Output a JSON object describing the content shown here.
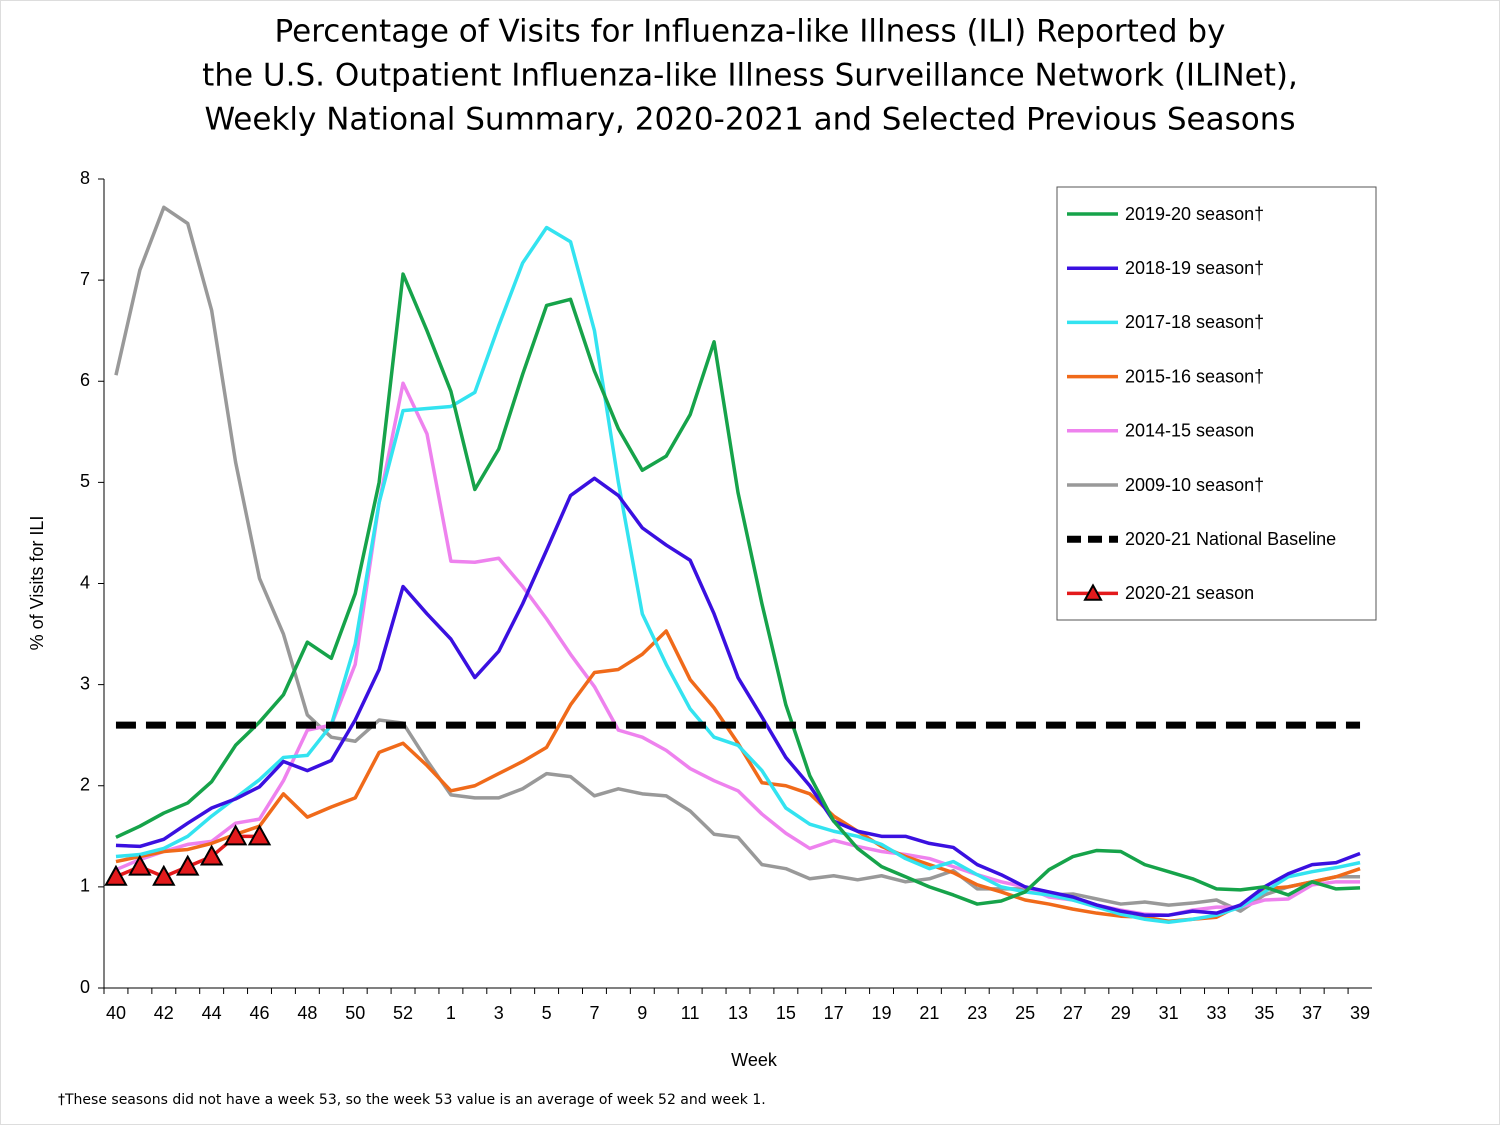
{
  "chart_data": {
    "type": "line",
    "title": [
      "Percentage of Visits for Influenza-like Illness (ILI) Reported by",
      "the U.S. Outpatient Influenza-like Illness Surveillance Network (ILINet),",
      "Weekly National Summary, 2020-2021 and Selected Previous Seasons"
    ],
    "x_label": "Week",
    "y_label": "% of Visits for ILI",
    "footnote": "†These seasons did not have a week 53, so the week 53 value is an average of week 52 and week 1.",
    "categories": [
      "40",
      null,
      "42",
      null,
      "44",
      null,
      "46",
      null,
      "48",
      null,
      "50",
      null,
      "52",
      null,
      "1",
      null,
      "3",
      null,
      "5",
      null,
      "7",
      null,
      "9",
      null,
      "11",
      null,
      "13",
      null,
      "15",
      null,
      "17",
      null,
      "19",
      null,
      "21",
      null,
      "23",
      null,
      "25",
      null,
      "27",
      null,
      "29",
      null,
      "31",
      null,
      "33",
      null,
      "35",
      null,
      "37",
      null,
      "39"
    ],
    "ylim": [
      0,
      8
    ],
    "yticks": [
      0,
      1,
      2,
      3,
      4,
      5,
      6,
      7,
      8
    ],
    "legend": "top-right",
    "series": [
      {
        "name": "2019-20 season†",
        "color": "#16a34a",
        "values": [
          1.49,
          1.6,
          1.73,
          1.83,
          2.04,
          2.4,
          2.63,
          2.9,
          3.42,
          3.26,
          3.9,
          5.0,
          7.06,
          6.5,
          5.9,
          4.93,
          5.33,
          6.07,
          6.75,
          6.81,
          6.1,
          5.53,
          5.12,
          5.26,
          5.67,
          6.39,
          4.9,
          3.8,
          2.8,
          2.1,
          1.65,
          1.38,
          1.2,
          1.1,
          1.0,
          0.92,
          0.83,
          0.86,
          0.95,
          1.17,
          1.3,
          1.36,
          1.35,
          1.22,
          1.15,
          1.08,
          0.98,
          0.97,
          1.0,
          0.92,
          1.05,
          0.98,
          0.99
        ]
      },
      {
        "name": "2018-19 season†",
        "color": "#3a10e0",
        "values": [
          1.41,
          1.4,
          1.47,
          1.63,
          1.78,
          1.87,
          1.99,
          2.24,
          2.15,
          2.25,
          2.65,
          3.15,
          3.97,
          3.7,
          3.45,
          3.07,
          3.33,
          3.8,
          4.33,
          4.87,
          5.04,
          4.87,
          4.55,
          4.38,
          4.23,
          3.7,
          3.07,
          2.68,
          2.28,
          2.0,
          1.65,
          1.55,
          1.5,
          1.5,
          1.43,
          1.39,
          1.22,
          1.12,
          1.0,
          0.95,
          0.9,
          0.82,
          0.76,
          0.72,
          0.72,
          0.76,
          0.74,
          0.82,
          1.0,
          1.13,
          1.22,
          1.24,
          1.33
        ]
      },
      {
        "name": "2017-18 season†",
        "color": "#33e3f0",
        "values": [
          1.3,
          1.32,
          1.38,
          1.5,
          1.7,
          1.88,
          2.06,
          2.28,
          2.3,
          2.6,
          3.4,
          4.8,
          5.71,
          5.73,
          5.75,
          5.89,
          6.55,
          7.17,
          7.52,
          7.38,
          6.5,
          5.0,
          3.7,
          3.2,
          2.76,
          2.48,
          2.4,
          2.15,
          1.78,
          1.62,
          1.55,
          1.5,
          1.42,
          1.28,
          1.18,
          1.25,
          1.12,
          1.0,
          0.95,
          0.92,
          0.87,
          0.8,
          0.73,
          0.68,
          0.65,
          0.68,
          0.72,
          0.8,
          0.95,
          1.1,
          1.15,
          1.19,
          1.24
        ]
      },
      {
        "name": "2015-16 season†",
        "color": "#f06a1a",
        "values": [
          1.25,
          1.3,
          1.35,
          1.37,
          1.43,
          1.52,
          1.6,
          1.92,
          1.69,
          1.79,
          1.88,
          2.33,
          2.42,
          2.2,
          1.95,
          2.0,
          2.12,
          2.24,
          2.38,
          2.8,
          3.12,
          3.15,
          3.3,
          3.53,
          3.05,
          2.77,
          2.42,
          2.03,
          2.0,
          1.92,
          1.7,
          1.55,
          1.4,
          1.3,
          1.22,
          1.14,
          1.02,
          0.95,
          0.87,
          0.83,
          0.78,
          0.74,
          0.71,
          0.7,
          0.66,
          0.68,
          0.7,
          0.82,
          0.98,
          1.0,
          1.05,
          1.1,
          1.18
        ]
      },
      {
        "name": "2014-15 season",
        "color": "#ee82ee",
        "values": [
          1.17,
          1.27,
          1.35,
          1.42,
          1.45,
          1.63,
          1.67,
          2.05,
          2.55,
          2.6,
          3.2,
          4.8,
          5.98,
          5.48,
          4.22,
          4.21,
          4.25,
          3.97,
          3.65,
          3.3,
          2.98,
          2.55,
          2.48,
          2.35,
          2.17,
          2.05,
          1.95,
          1.72,
          1.53,
          1.38,
          1.46,
          1.4,
          1.35,
          1.32,
          1.28,
          1.2,
          1.12,
          1.05,
          1.0,
          0.9,
          0.87,
          0.82,
          0.77,
          0.73,
          0.72,
          0.77,
          0.8,
          0.8,
          0.87,
          0.88,
          1.02,
          1.05,
          1.05
        ]
      },
      {
        "name": "2009-10 season†",
        "color": "#999999",
        "values": [
          6.06,
          7.1,
          7.72,
          7.56,
          6.7,
          5.2,
          4.05,
          3.5,
          2.7,
          2.48,
          2.44,
          2.65,
          2.62,
          2.25,
          1.91,
          1.88,
          1.88,
          1.97,
          2.12,
          2.09,
          1.9,
          1.97,
          1.92,
          1.9,
          1.75,
          1.52,
          1.49,
          1.22,
          1.18,
          1.08,
          1.11,
          1.07,
          1.11,
          1.05,
          1.08,
          1.16,
          0.98,
          0.98,
          0.98,
          0.92,
          0.93,
          0.88,
          0.83,
          0.85,
          0.82,
          0.84,
          0.87,
          0.76,
          0.92,
          1.0,
          1.05,
          1.1,
          1.1
        ]
      },
      {
        "name": "2020-21 National Baseline",
        "color": "#000000",
        "dashed": true,
        "values": [
          2.6,
          2.6,
          2.6,
          2.6,
          2.6,
          2.6,
          2.6,
          2.6,
          2.6,
          2.6,
          2.6,
          2.6,
          2.6,
          2.6,
          2.6,
          2.6,
          2.6,
          2.6,
          2.6,
          2.6,
          2.6,
          2.6,
          2.6,
          2.6,
          2.6,
          2.6,
          2.6,
          2.6,
          2.6,
          2.6,
          2.6,
          2.6,
          2.6,
          2.6,
          2.6,
          2.6,
          2.6,
          2.6,
          2.6,
          2.6,
          2.6,
          2.6,
          2.6,
          2.6,
          2.6,
          2.6,
          2.6,
          2.6,
          2.6,
          2.6,
          2.6,
          2.6,
          2.6
        ]
      },
      {
        "name": "2020-21 season",
        "color": "#e31a1c",
        "marker": "triangle",
        "values": [
          1.1,
          1.2,
          1.1,
          1.2,
          1.3,
          1.5,
          1.5,
          null,
          null,
          null,
          null,
          null,
          null,
          null,
          null,
          null,
          null,
          null,
          null,
          null,
          null,
          null,
          null,
          null,
          null,
          null,
          null,
          null,
          null,
          null,
          null,
          null,
          null,
          null,
          null,
          null,
          null,
          null,
          null,
          null,
          null,
          null,
          null,
          null,
          null,
          null,
          null,
          null,
          null,
          null,
          null,
          null,
          null
        ]
      }
    ]
  }
}
